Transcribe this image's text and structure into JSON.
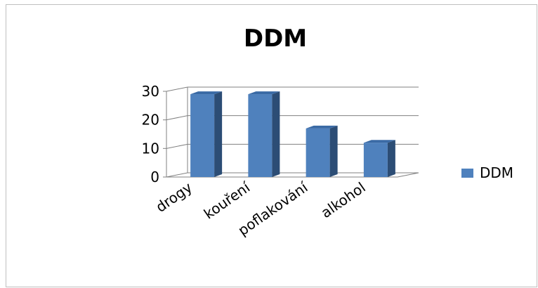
{
  "chart_data": {
    "type": "bar",
    "title": "DDM",
    "categories": [
      "drogy",
      "kouření",
      "poflakování",
      "alkohol"
    ],
    "series": [
      {
        "name": "DDM",
        "values": [
          29,
          29,
          17,
          12
        ],
        "color": "#4F81BD"
      }
    ],
    "ylim": [
      0,
      30
    ],
    "yticks": [
      0,
      10,
      20,
      30
    ],
    "grid": true,
    "legend_position": "right",
    "style": "3d-column"
  }
}
